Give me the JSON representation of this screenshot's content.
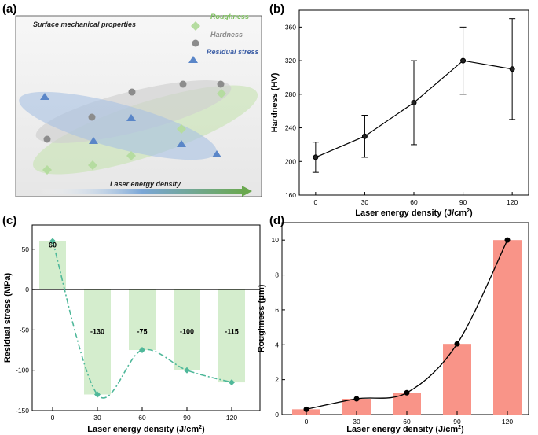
{
  "panels": {
    "a": {
      "label": "(a)",
      "title": "Surface mechanical properties",
      "legend": [
        {
          "text": "Roughness",
          "color": "#7dbf5e",
          "marker": "diamond"
        },
        {
          "text": "Hardness",
          "color": "#8a8a8a",
          "marker": "circle"
        },
        {
          "text": "Residual stress",
          "color": "#3d5fa6",
          "marker": "triangle"
        }
      ],
      "arrow_label": "Laser energy density",
      "colors": {
        "roughness_fill": "#c9e3b5",
        "hardness_fill": "#d3d3d3",
        "stress_fill": "#b3c9e6",
        "arrow": "#6aa84f"
      }
    },
    "b": {
      "label": "(b)"
    },
    "c": {
      "label": "(c)"
    },
    "d": {
      "label": "(d)"
    }
  },
  "chart_data": [
    {
      "panel": "b",
      "type": "line",
      "x": [
        0,
        30,
        60,
        90,
        120
      ],
      "y": [
        205,
        230,
        270,
        320,
        310
      ],
      "error": [
        18,
        25,
        50,
        40,
        60
      ],
      "xlabel": "Laser energy density (J/cm",
      "xlabel_sup": "2",
      "xlabel_end": ")",
      "ylabel": "Hardness (HV)",
      "xticks": [
        "0",
        "30",
        "60",
        "90",
        "120"
      ],
      "yticks": [
        "160",
        "200",
        "240",
        "280",
        "320",
        "360"
      ],
      "xlim": [
        -10,
        130
      ],
      "ylim": [
        160,
        380
      ],
      "color": "#000000"
    },
    {
      "panel": "c",
      "type": "bar",
      "categories": [
        "0",
        "30",
        "60",
        "90",
        "120"
      ],
      "values": [
        60,
        -130,
        -75,
        -100,
        -115
      ],
      "value_labels": [
        "60",
        "-130",
        "-75",
        "-100",
        "-115"
      ],
      "xlabel": "Laser  energy density (J/cm",
      "xlabel_sup": "2",
      "xlabel_end": ")",
      "ylabel": "Residual stress (MPa)",
      "yticks": [
        "50",
        "0",
        "-50",
        "-100",
        "-150"
      ],
      "ylim": [
        -150,
        80
      ],
      "bar_color": "#d4edcd",
      "line_color": "#4fb89a",
      "line_style": "dash-dot"
    },
    {
      "panel": "d",
      "type": "bar",
      "categories": [
        "0",
        "30",
        "60",
        "90",
        "120"
      ],
      "values": [
        0.3,
        0.9,
        1.25,
        4.05,
        10
      ],
      "xlabel": "Laser energy density (J/cm",
      "xlabel_sup": "2",
      "xlabel_end": ")",
      "ylabel": "Roughness (μm)",
      "yticks": [
        "0",
        "2",
        "4",
        "6",
        "8",
        "10"
      ],
      "ylim": [
        0,
        11
      ],
      "bar_color": "#f99488",
      "line_color": "#000000"
    }
  ]
}
